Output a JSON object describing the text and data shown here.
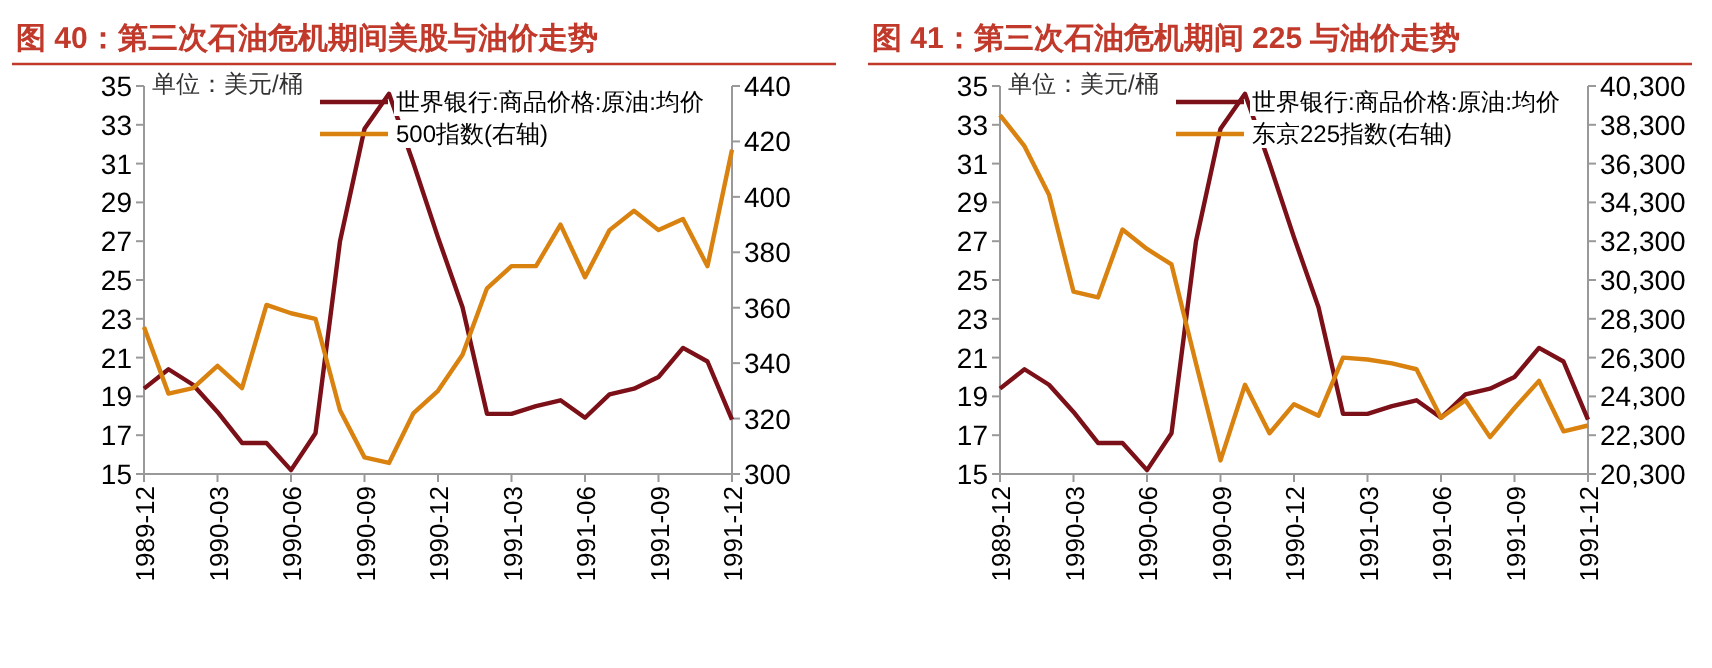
{
  "chart_data": [
    {
      "type": "line",
      "title": "图 40：第三次石油危机期间美股与油价走势",
      "ylabel": "单位：美元/桶",
      "legend": "top",
      "grid": false,
      "categories": [
        "1989-12",
        null,
        null,
        "1990-03",
        null,
        null,
        "1990-06",
        null,
        null,
        "1990-09",
        null,
        null,
        "1990-12",
        null,
        null,
        "1991-03",
        null,
        null,
        "1991-06",
        null,
        null,
        "1991-09",
        null,
        null,
        "1991-12"
      ],
      "ylim": [
        15,
        35
      ],
      "yticks": [
        15,
        17,
        19,
        21,
        23,
        25,
        27,
        29,
        31,
        33,
        35
      ],
      "y2lim": [
        300,
        440
      ],
      "y2ticks": [
        300,
        320,
        340,
        360,
        380,
        400,
        420,
        440
      ],
      "series": [
        {
          "name": "世界银行:商品价格:原油:均价",
          "color": "#7b1018",
          "values": [
            19.4,
            20.4,
            19.6,
            18.2,
            16.6,
            16.6,
            15.2,
            17.1,
            27.0,
            32.8,
            34.6,
            31.0,
            27.2,
            23.6,
            18.1,
            18.1,
            18.5,
            18.8,
            17.9,
            19.1,
            19.4,
            20.0,
            21.5,
            20.8,
            17.8
          ]
        },
        {
          "name": "500指数(右轴)",
          "color": "#d9820f",
          "axis": "y2",
          "values": [
            353,
            329,
            331,
            339,
            331,
            361,
            358,
            356,
            323,
            306,
            304,
            322,
            330,
            343,
            367,
            375,
            375,
            390,
            371,
            388,
            395,
            388,
            392,
            375,
            417
          ]
        }
      ]
    },
    {
      "type": "line",
      "title": "图 41：第三次石油危机期间 225 与油价走势",
      "ylabel": "单位：美元/桶",
      "legend": "top",
      "grid": false,
      "categories": [
        "1989-12",
        null,
        null,
        "1990-03",
        null,
        null,
        "1990-06",
        null,
        null,
        "1990-09",
        null,
        null,
        "1990-12",
        null,
        null,
        "1991-03",
        null,
        null,
        "1991-06",
        null,
        null,
        "1991-09",
        null,
        null,
        "1991-12"
      ],
      "ylim": [
        15,
        35
      ],
      "yticks": [
        15,
        17,
        19,
        21,
        23,
        25,
        27,
        29,
        31,
        33,
        35
      ],
      "y2lim": [
        20300,
        40300
      ],
      "y2ticks": [
        {
          "value": 20300,
          "label": "20,300"
        },
        {
          "value": 22300,
          "label": "22,300"
        },
        {
          "value": 24300,
          "label": "24,300"
        },
        {
          "value": 26300,
          "label": "26,300"
        },
        {
          "value": 28300,
          "label": "28,300"
        },
        {
          "value": 30300,
          "label": "30,300"
        },
        {
          "value": 32300,
          "label": "32,300"
        },
        {
          "value": 34300,
          "label": "34,300"
        },
        {
          "value": 36300,
          "label": "36,300"
        },
        {
          "value": 38300,
          "label": "38,300"
        },
        {
          "value": 40300,
          "label": "40,300"
        }
      ],
      "series": [
        {
          "name": "世界银行:商品价格:原油:均价",
          "color": "#7b1018",
          "values": [
            19.4,
            20.4,
            19.6,
            18.2,
            16.6,
            16.6,
            15.2,
            17.1,
            27.0,
            32.8,
            34.6,
            31.0,
            27.2,
            23.6,
            18.1,
            18.1,
            18.5,
            18.8,
            17.9,
            19.1,
            19.4,
            20.0,
            21.5,
            20.8,
            17.8
          ]
        },
        {
          "name": "东京225指数(右轴)",
          "color": "#d9820f",
          "axis": "y2",
          "values": [
            38800,
            37200,
            34700,
            29700,
            29400,
            32900,
            31900,
            31100,
            26000,
            21000,
            24900,
            22400,
            23900,
            23300,
            26300,
            26200,
            26000,
            25700,
            23200,
            24100,
            22200,
            23700,
            25100,
            22500,
            22800
          ]
        }
      ]
    }
  ]
}
